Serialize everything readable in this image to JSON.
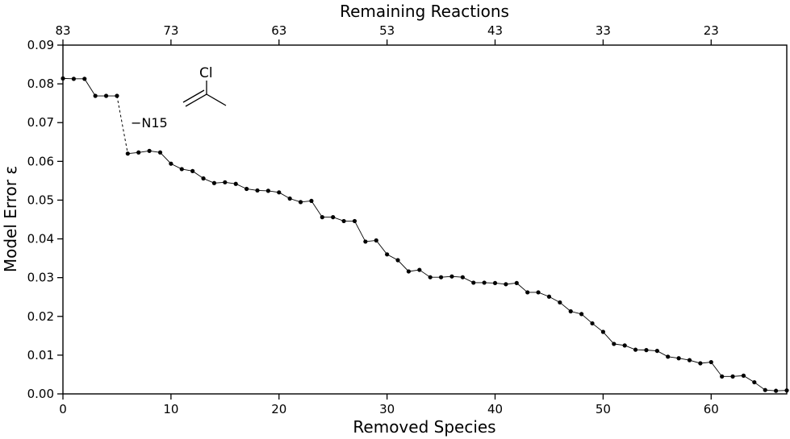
{
  "chart_data": {
    "type": "line",
    "xlabel": "Removed Species",
    "ylabel": "Model Error ε",
    "top_xlabel": "Remaining Reactions",
    "xlim": [
      0,
      67
    ],
    "ylim": [
      0,
      0.09
    ],
    "x_ticks": [
      0,
      10,
      20,
      30,
      40,
      50,
      60
    ],
    "x_tick_labels": [
      "0",
      "10",
      "20",
      "30",
      "40",
      "50",
      "60"
    ],
    "y_ticks": [
      0,
      0.01,
      0.02,
      0.03,
      0.04,
      0.05,
      0.06,
      0.07,
      0.08,
      0.09
    ],
    "y_tick_labels": [
      "0.00",
      "0.01",
      "0.02",
      "0.03",
      "0.04",
      "0.05",
      "0.06",
      "0.07",
      "0.08",
      "0.09"
    ],
    "top_x_ticks": [
      0,
      10,
      20,
      30,
      40,
      50,
      60
    ],
    "top_x_tick_labels": [
      "83",
      "73",
      "63",
      "53",
      "43",
      "33",
      "23"
    ],
    "grid": false,
    "series": [
      {
        "x": [
          0,
          1,
          2,
          3,
          4,
          5,
          6,
          7,
          8,
          9,
          10,
          11,
          12,
          13,
          14,
          15,
          16,
          17,
          18,
          19,
          20,
          21,
          22,
          23,
          24,
          25,
          26,
          27,
          28,
          29,
          30,
          31,
          32,
          33,
          34,
          35,
          36,
          37,
          38,
          39,
          40,
          41,
          42,
          43,
          44,
          45,
          46,
          47,
          48,
          49,
          50,
          51,
          52,
          53,
          54,
          55,
          56,
          57,
          58,
          59,
          60,
          61,
          62,
          63,
          64,
          65,
          66,
          67
        ],
        "y": [
          0.0814,
          0.0813,
          0.0813,
          0.0769,
          0.0769,
          0.0769,
          0.062,
          0.0623,
          0.0627,
          0.0623,
          0.0594,
          0.058,
          0.0575,
          0.0556,
          0.0544,
          0.0546,
          0.0542,
          0.0529,
          0.0525,
          0.0524,
          0.052,
          0.0504,
          0.0495,
          0.0498,
          0.0456,
          0.0456,
          0.0446,
          0.0446,
          0.0393,
          0.0396,
          0.036,
          0.0345,
          0.0316,
          0.032,
          0.0301,
          0.0301,
          0.0303,
          0.0301,
          0.0287,
          0.0287,
          0.0286,
          0.0283,
          0.0286,
          0.0262,
          0.0262,
          0.0251,
          0.0236,
          0.0213,
          0.0206,
          0.0182,
          0.016,
          0.0129,
          0.0125,
          0.0114,
          0.0113,
          0.0111,
          0.0096,
          0.0092,
          0.0087,
          0.0079,
          0.0082,
          0.0045,
          0.0045,
          0.0047,
          0.003,
          0.001,
          0.0008,
          0.0009
        ]
      }
    ],
    "annotation": {
      "text": "−N15",
      "molecule_label": "Cl",
      "from_point": [
        5,
        0.0769
      ],
      "to_point": [
        6,
        0.062
      ]
    }
  }
}
